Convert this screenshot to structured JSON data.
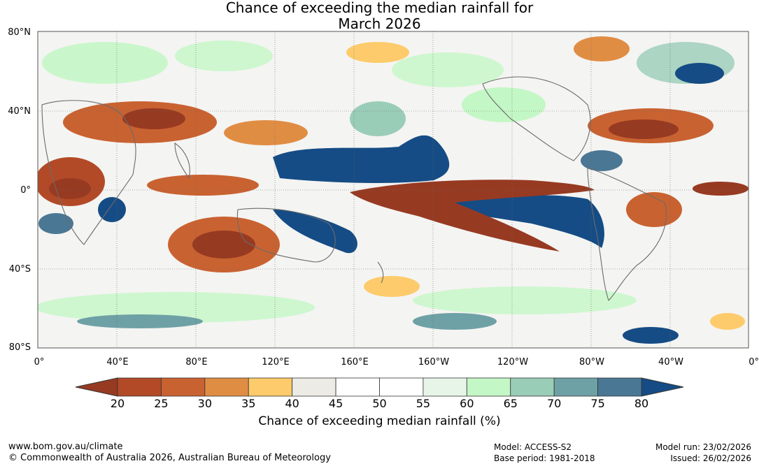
{
  "title": {
    "line1": "Chance of exceeding the median rainfall for",
    "line2": "March 2026"
  },
  "axes": {
    "lat_labels": [
      "80°N",
      "40°N",
      "0°",
      "40°S",
      "80°S"
    ],
    "lon_labels": [
      "0°",
      "40°E",
      "80°E",
      "120°E",
      "160°E",
      "160°W",
      "120°W",
      "80°W",
      "40°W",
      "0°"
    ]
  },
  "colorbar": {
    "ticks": [
      "20",
      "25",
      "30",
      "35",
      "40",
      "45",
      "50",
      "55",
      "60",
      "65",
      "70",
      "75",
      "80"
    ],
    "colors": [
      "#b24a27",
      "#c96231",
      "#e08d44",
      "#fdcb6b",
      "#ecebe6",
      "#ffffff",
      "#ffffff",
      "#e7f5e8",
      "#c4f7c6",
      "#9acdb7",
      "#6ea1a6",
      "#4a7794"
    ],
    "low_extend_color": "#973a22",
    "high_extend_color": "#154c85",
    "label": "Chance of exceeding median rainfall (%)"
  },
  "footer": {
    "url": "www.bom.gov.au/climate",
    "copyright": "© Commonwealth of Australia 2026, Australian Bureau of Meteorology",
    "model": "Model: ACCESS-S2",
    "base_period": "Base period: 1981-2018",
    "model_run": "Model run: 23/02/2026",
    "issued": "Issued: 26/02/2026"
  }
}
